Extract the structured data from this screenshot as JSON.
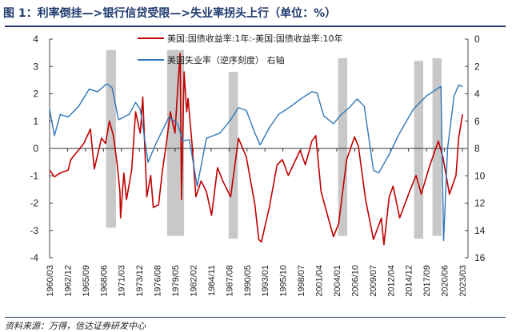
{
  "title": "图 1：利率倒挂—>银行信贷受限—>失业率拐头上行（单位：%）",
  "source": "资料来源：万得，信达证券研发中心",
  "chart_data": {
    "type": "line",
    "title": "图 1：利率倒挂—>银行信贷受限—>失业率拐头上行（单位：%）",
    "legend_position": "top-center",
    "left_axis": {
      "range": [
        -4,
        4
      ],
      "ticks": [
        "-4",
        "-3",
        "-2",
        "-1",
        "0",
        "1",
        "2",
        "3",
        "4"
      ]
    },
    "right_axis": {
      "range": [
        0,
        16
      ],
      "inverted": true,
      "ticks": [
        "0",
        "2",
        "4",
        "6",
        "8",
        "10",
        "12",
        "14",
        "16"
      ]
    },
    "x_range": [
      1960.17,
      2023.5
    ],
    "x_tick_labels": [
      "1960/03",
      "1962/12",
      "1965/09",
      "1968/06",
      "1971/03",
      "1973/12",
      "1976/08",
      "1979/05",
      "1982/02",
      "1984/11",
      "1987/08",
      "1990/05",
      "1993/01",
      "1995/10",
      "1998/07",
      "2001/04",
      "2004/01",
      "2006/10",
      "2009/07",
      "2012/04",
      "2014/12",
      "2017/09",
      "2020/06",
      "2023/03"
    ],
    "shaded_periods": [
      {
        "start": 1968.8,
        "end": 1970.3,
        "y_top": 3.6,
        "y_bottom": -2.9
      },
      {
        "start": 1978.1,
        "end": 1980.7,
        "y_top": 3.6,
        "y_bottom": -3.2
      },
      {
        "start": 1987.5,
        "end": 1988.9,
        "y_top": 2.8,
        "y_bottom": -3.3
      },
      {
        "start": 2004.2,
        "end": 2005.6,
        "y_top": 3.3,
        "y_bottom": -3.2
      },
      {
        "start": 2015.8,
        "end": 2017.2,
        "y_top": 3.2,
        "y_bottom": -3.3
      },
      {
        "start": 2018.6,
        "end": 2020.0,
        "y_top": 3.3,
        "y_bottom": -3.2
      }
    ],
    "series": [
      {
        "name": "美国:国债收益率:1年:-美国:国债收益率:10年",
        "axis": "left",
        "color": "#c00000",
        "points": [
          [
            1960.17,
            -0.79
          ],
          [
            1960.9,
            -1.04
          ],
          [
            1961.8,
            -0.9
          ],
          [
            1963.0,
            -0.79
          ],
          [
            1963.4,
            -0.41
          ],
          [
            1965.4,
            0.18
          ],
          [
            1966.4,
            0.71
          ],
          [
            1967.0,
            -0.75
          ],
          [
            1968.1,
            0.38
          ],
          [
            1968.7,
            0.18
          ],
          [
            1969.3,
            1.0
          ],
          [
            1969.9,
            0.47
          ],
          [
            1970.5,
            -0.6
          ],
          [
            1970.9,
            -1.58
          ],
          [
            1971.0,
            -2.54
          ],
          [
            1971.5,
            -0.9
          ],
          [
            1971.9,
            -1.87
          ],
          [
            1972.7,
            -0.79
          ],
          [
            1973.3,
            1.34
          ],
          [
            1974.0,
            0.56
          ],
          [
            1974.4,
            1.88
          ],
          [
            1975.0,
            -1.77
          ],
          [
            1975.6,
            -0.99
          ],
          [
            1976.0,
            -2.16
          ],
          [
            1976.8,
            -2.06
          ],
          [
            1977.4,
            -0.8
          ],
          [
            1978.0,
            0.18
          ],
          [
            1978.6,
            1.34
          ],
          [
            1979.3,
            0.56
          ],
          [
            1979.7,
            2.12
          ],
          [
            1980.1,
            3.48
          ],
          [
            1980.3,
            -1.87
          ],
          [
            1980.7,
            2.8
          ],
          [
            1981.1,
            1.34
          ],
          [
            1981.3,
            1.83
          ],
          [
            1981.9,
            0.18
          ],
          [
            1982.5,
            -1.77
          ],
          [
            1983.3,
            -1.19
          ],
          [
            1984.1,
            -1.58
          ],
          [
            1984.9,
            -2.45
          ],
          [
            1985.8,
            -0.7
          ],
          [
            1986.6,
            -1.19
          ],
          [
            1987.8,
            -1.77
          ],
          [
            1989.0,
            0.37
          ],
          [
            1990.2,
            -0.31
          ],
          [
            1991.5,
            -2.06
          ],
          [
            1992.1,
            -3.33
          ],
          [
            1992.5,
            -3.42
          ],
          [
            1993.7,
            -2.16
          ],
          [
            1994.9,
            -0.6
          ],
          [
            1995.7,
            -0.41
          ],
          [
            1996.6,
            -0.99
          ],
          [
            1998.4,
            -0.07
          ],
          [
            1999.2,
            -0.6
          ],
          [
            2000.2,
            0.27
          ],
          [
            2000.8,
            0.47
          ],
          [
            2001.6,
            -1.58
          ],
          [
            2002.7,
            -2.54
          ],
          [
            2003.5,
            -3.23
          ],
          [
            2004.3,
            -2.74
          ],
          [
            2005.5,
            -0.41
          ],
          [
            2006.7,
            0.42
          ],
          [
            2007.3,
            0.08
          ],
          [
            2008.4,
            -1.87
          ],
          [
            2009.6,
            -3.33
          ],
          [
            2010.8,
            -2.55
          ],
          [
            2011.2,
            -3.52
          ],
          [
            2012.0,
            -1.77
          ],
          [
            2012.6,
            -1.38
          ],
          [
            2013.6,
            -2.54
          ],
          [
            2015.1,
            -1.58
          ],
          [
            2016.1,
            -0.99
          ],
          [
            2016.9,
            -1.67
          ],
          [
            2018.1,
            -0.7
          ],
          [
            2019.5,
            0.27
          ],
          [
            2020.2,
            -0.31
          ],
          [
            2021.2,
            -1.67
          ],
          [
            2022.2,
            -0.99
          ],
          [
            2022.6,
            0.37
          ],
          [
            2023.2,
            1.25
          ]
        ]
      },
      {
        "name": "美国失业率（逆序刻度） 右轴",
        "axis": "right",
        "color": "#2e75b6",
        "points": [
          [
            1960.17,
            5.12
          ],
          [
            1960.9,
            7.07
          ],
          [
            1961.8,
            5.51
          ],
          [
            1963.0,
            5.7
          ],
          [
            1964.6,
            4.92
          ],
          [
            1966.2,
            3.66
          ],
          [
            1967.5,
            3.85
          ],
          [
            1968.9,
            3.27
          ],
          [
            1969.7,
            3.56
          ],
          [
            1970.7,
            5.9
          ],
          [
            1972.3,
            5.51
          ],
          [
            1973.3,
            4.63
          ],
          [
            1974.0,
            5.12
          ],
          [
            1975.2,
            9.01
          ],
          [
            1976.4,
            7.65
          ],
          [
            1978.4,
            5.7
          ],
          [
            1979.7,
            6.19
          ],
          [
            1980.5,
            7.46
          ],
          [
            1981.5,
            7.36
          ],
          [
            1982.7,
            10.76
          ],
          [
            1984.1,
            7.26
          ],
          [
            1986.2,
            6.87
          ],
          [
            1987.8,
            5.9
          ],
          [
            1989.0,
            5.02
          ],
          [
            1990.2,
            5.22
          ],
          [
            1991.5,
            6.87
          ],
          [
            1992.3,
            7.75
          ],
          [
            1993.7,
            6.48
          ],
          [
            1995.1,
            5.51
          ],
          [
            1997.0,
            4.92
          ],
          [
            1998.6,
            4.34
          ],
          [
            2000.2,
            3.85
          ],
          [
            2001.0,
            3.95
          ],
          [
            2002.0,
            5.61
          ],
          [
            2003.5,
            6.19
          ],
          [
            2004.7,
            5.51
          ],
          [
            2005.9,
            5.02
          ],
          [
            2007.1,
            4.38
          ],
          [
            2008.2,
            4.92
          ],
          [
            2009.6,
            9.59
          ],
          [
            2010.4,
            9.79
          ],
          [
            2012.0,
            8.43
          ],
          [
            2013.6,
            6.87
          ],
          [
            2015.7,
            5.12
          ],
          [
            2017.7,
            4.15
          ],
          [
            2019.9,
            3.46
          ],
          [
            2020.3,
            14.75
          ],
          [
            2020.9,
            8.04
          ],
          [
            2021.9,
            4.15
          ],
          [
            2022.6,
            3.37
          ],
          [
            2023.2,
            3.46
          ]
        ]
      }
    ]
  }
}
